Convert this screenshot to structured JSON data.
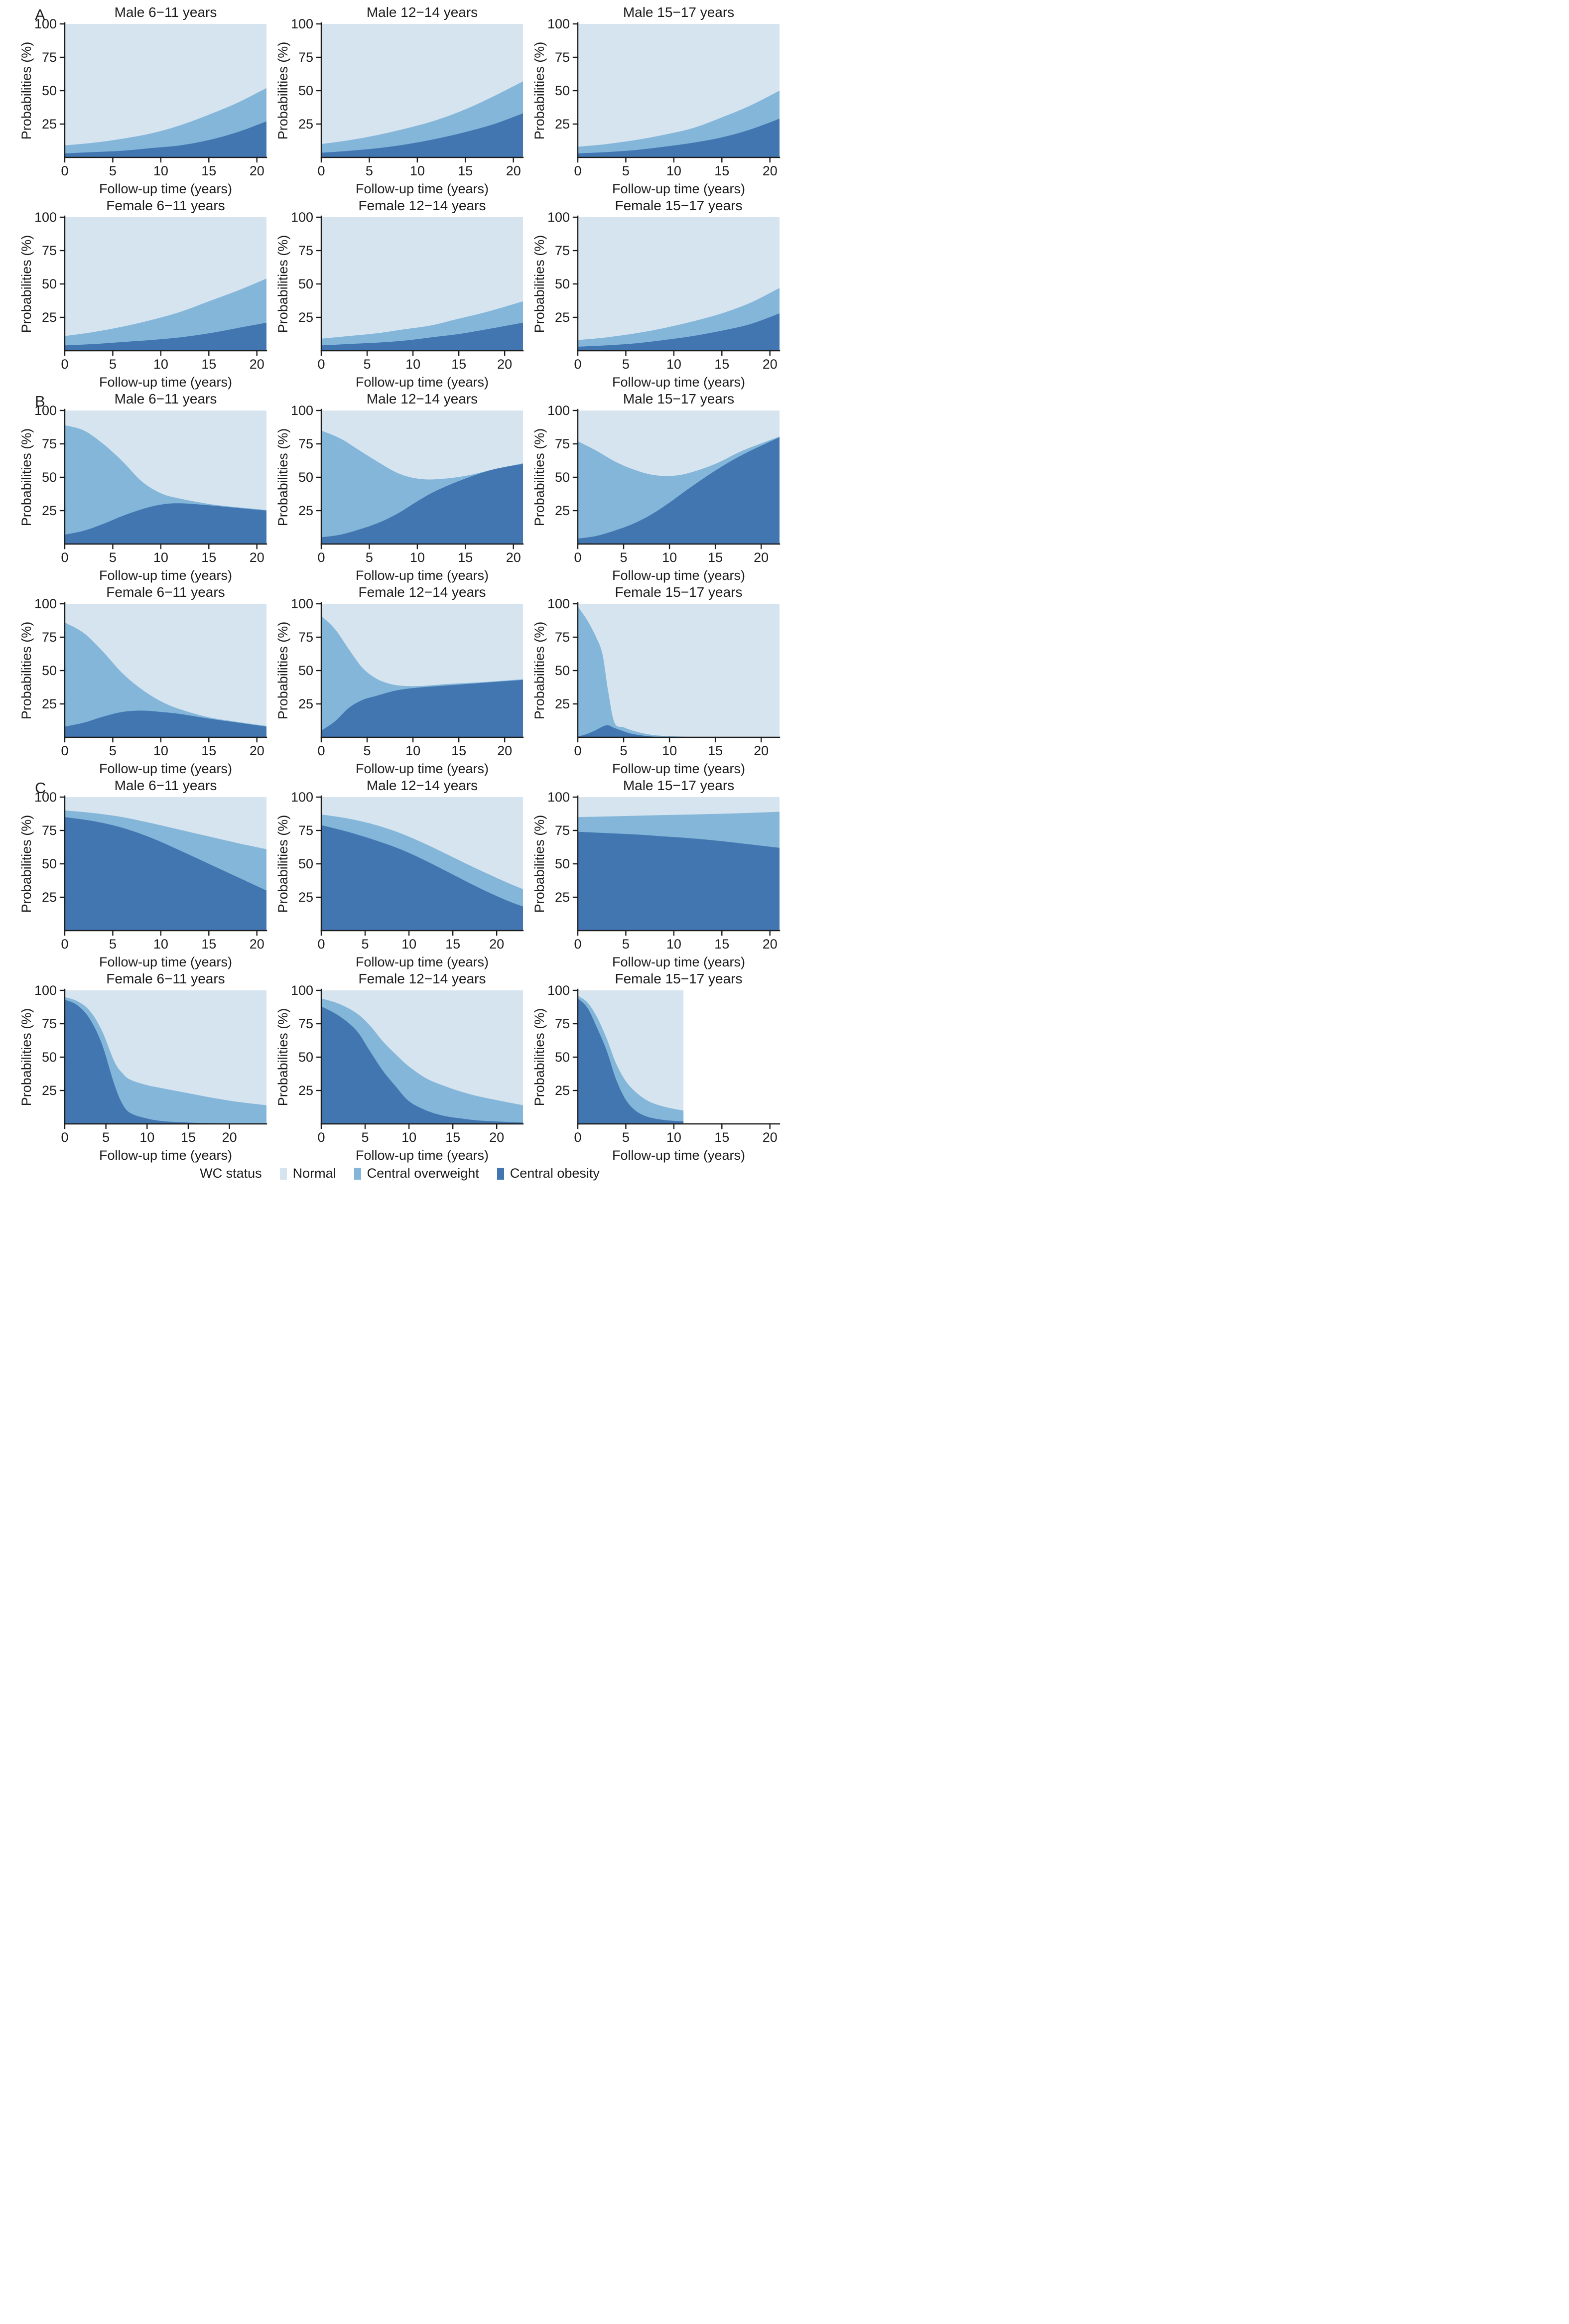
{
  "figure": {
    "panels": [
      {
        "label": "A"
      },
      {
        "label": "B"
      },
      {
        "label": "C"
      }
    ],
    "axis": {
      "ylabel": "Probabilities (%)",
      "xlabel": "Follow-up time (years)",
      "y_ticks": [
        25,
        50,
        75,
        100
      ],
      "ylim": [
        0,
        100
      ]
    },
    "legend": {
      "title": "WC status",
      "items": [
        {
          "label": "Normal",
          "color": "#d6e4f0"
        },
        {
          "label": "Central overweight",
          "color": "#83b6d9"
        },
        {
          "label": "Central obesity",
          "color": "#4276b1"
        }
      ]
    },
    "colors": {
      "axis": "#1c1c1c",
      "text": "#1c1c1c"
    }
  },
  "chart_data": {
    "type": "area",
    "notes": "Stacked area charts. Values are cumulative stacked boundaries in percent read from the figure: central_obesity_cum is the top of the dark-blue band, central_overweight_cum is the top of the mid-blue band; the light-blue Normal band fills the remainder up to 100 from x=0 to data_xmax.",
    "ylabel": "Probabilities (%)",
    "xlabel": "Follow-up time (years)",
    "y_ticks": [
      25,
      50,
      75,
      100
    ],
    "ylim": [
      0,
      100
    ],
    "charts": [
      {
        "panel": "A",
        "title": "Male 6−11 years",
        "x_ticks": [
          0,
          5,
          10,
          15,
          20
        ],
        "xlim": [
          0,
          21
        ],
        "data_xmax": 21,
        "x": [
          0,
          3,
          6,
          9,
          12,
          15,
          18,
          21
        ],
        "central_obesity_cum": [
          3,
          4,
          5,
          7,
          9,
          13,
          19,
          27
        ],
        "central_overweight_cum": [
          9,
          11,
          14,
          18,
          24,
          32,
          41,
          52
        ]
      },
      {
        "panel": "A",
        "title": "Male 12−14 years",
        "x_ticks": [
          0,
          5,
          10,
          15,
          20
        ],
        "xlim": [
          0,
          21
        ],
        "data_xmax": 21,
        "x": [
          0,
          3,
          6,
          9,
          12,
          15,
          18,
          21
        ],
        "central_obesity_cum": [
          3.5,
          5,
          7,
          10,
          14,
          19,
          25,
          33
        ],
        "central_overweight_cum": [
          10,
          13,
          17,
          22,
          28,
          36,
          46,
          57
        ]
      },
      {
        "panel": "A",
        "title": "Male 15−17 years",
        "x_ticks": [
          0,
          5,
          10,
          15,
          20
        ],
        "xlim": [
          0,
          21
        ],
        "data_xmax": 21,
        "x": [
          0,
          3,
          6,
          9,
          12,
          15,
          18,
          21
        ],
        "central_obesity_cum": [
          3,
          4,
          5.5,
          8,
          11,
          15,
          21,
          29
        ],
        "central_overweight_cum": [
          8,
          10,
          13,
          17,
          22,
          30,
          39,
          50
        ]
      },
      {
        "panel": "A",
        "title": "Female 6−11 years",
        "x_ticks": [
          0,
          5,
          10,
          15,
          20
        ],
        "xlim": [
          0,
          21
        ],
        "data_xmax": 21,
        "x": [
          0,
          3,
          6,
          9,
          12,
          15,
          18,
          21
        ],
        "central_obesity_cum": [
          4,
          5,
          6.5,
          8,
          10,
          13,
          17,
          21
        ],
        "central_overweight_cum": [
          11,
          14,
          18,
          23,
          29,
          37,
          45,
          54
        ]
      },
      {
        "panel": "A",
        "title": "Female 12−14 years",
        "x_ticks": [
          0,
          5,
          10,
          15,
          20
        ],
        "xlim": [
          0,
          22
        ],
        "data_xmax": 22,
        "x": [
          0,
          3,
          6,
          9,
          12,
          15,
          18,
          22
        ],
        "central_obesity_cum": [
          4,
          5,
          6,
          7.5,
          10,
          12.5,
          16,
          21
        ],
        "central_overweight_cum": [
          9,
          11,
          13,
          16,
          19,
          24,
          29,
          37
        ]
      },
      {
        "panel": "A",
        "title": "Female 15−17 years",
        "x_ticks": [
          0,
          5,
          10,
          15,
          20
        ],
        "xlim": [
          0,
          21
        ],
        "data_xmax": 21,
        "x": [
          0,
          3,
          6,
          9,
          12,
          15,
          18,
          21
        ],
        "central_obesity_cum": [
          3,
          4,
          5.5,
          8,
          11,
          15,
          20,
          28
        ],
        "central_overweight_cum": [
          8,
          10,
          13,
          17,
          22,
          28,
          36,
          47
        ]
      },
      {
        "panel": "B",
        "title": "Male 6−11 years",
        "x_ticks": [
          0,
          5,
          10,
          15,
          20
        ],
        "xlim": [
          0,
          21
        ],
        "data_xmax": 21,
        "x": [
          0,
          2,
          4,
          6,
          8,
          10,
          12,
          15,
          18,
          21
        ],
        "central_obesity_cum": [
          7,
          10,
          15,
          21,
          26,
          29.5,
          30.5,
          29,
          27,
          25
        ],
        "central_overweight_cum": [
          89,
          85,
          75,
          62,
          47,
          38,
          34,
          30,
          27.5,
          25.5
        ]
      },
      {
        "panel": "B",
        "title": "Male 12−14 years",
        "x_ticks": [
          0,
          5,
          10,
          15,
          20
        ],
        "xlim": [
          0,
          21
        ],
        "data_xmax": 21,
        "x": [
          0,
          2,
          4,
          6,
          8,
          10,
          12,
          15,
          18,
          21
        ],
        "central_obesity_cum": [
          5,
          7,
          11,
          16,
          23,
          32,
          40,
          49,
          56,
          60
        ],
        "central_overweight_cum": [
          85,
          79,
          70,
          61,
          53,
          49,
          48.5,
          51,
          56,
          60.5
        ]
      },
      {
        "panel": "B",
        "title": "Male 15−17 years",
        "x_ticks": [
          0,
          5,
          10,
          15,
          20
        ],
        "xlim": [
          0,
          22
        ],
        "data_xmax": 22,
        "x": [
          0,
          2,
          4,
          6,
          8,
          10,
          12,
          15,
          18,
          22
        ],
        "central_obesity_cum": [
          4,
          6,
          10,
          15,
          22,
          31,
          41,
          55,
          67,
          80
        ],
        "central_overweight_cum": [
          77,
          70,
          62,
          56,
          52,
          51,
          53,
          60,
          70,
          80.5
        ]
      },
      {
        "panel": "B",
        "title": "Female 6−11 years",
        "x_ticks": [
          0,
          5,
          10,
          15,
          20
        ],
        "xlim": [
          0,
          21
        ],
        "data_xmax": 21,
        "x": [
          0,
          2,
          4,
          6,
          8,
          10,
          12,
          15,
          18,
          21
        ],
        "central_obesity_cum": [
          8,
          11,
          15.5,
          19,
          20,
          19,
          17.5,
          14,
          11,
          8
        ],
        "central_overweight_cum": [
          86,
          78,
          64,
          48,
          36,
          27,
          21,
          15,
          11.5,
          8.5
        ]
      },
      {
        "panel": "B",
        "title": "Female 12−14 years",
        "x_ticks": [
          0,
          5,
          10,
          15,
          20
        ],
        "xlim": [
          0,
          22
        ],
        "data_xmax": 22,
        "x": [
          0,
          1.5,
          3,
          4.5,
          6,
          7.5,
          9,
          11,
          14,
          18,
          22
        ],
        "central_obesity_cum": [
          5,
          12,
          22,
          28,
          31,
          34,
          36,
          37.5,
          39,
          41,
          43
        ],
        "central_overweight_cum": [
          91,
          81,
          66,
          52,
          44,
          40,
          38.5,
          38.5,
          40,
          41.5,
          43.5
        ]
      },
      {
        "panel": "B",
        "title": "Female 15−17 years",
        "x_ticks": [
          0,
          5,
          10,
          15,
          20
        ],
        "xlim": [
          0,
          22
        ],
        "data_xmax": 22,
        "x": [
          0,
          1,
          2,
          2.7,
          3.3,
          4,
          5,
          6,
          7.5,
          9,
          12,
          16,
          22
        ],
        "central_obesity_cum": [
          0.5,
          2.5,
          5.5,
          8,
          9,
          7,
          4.5,
          2.5,
          1,
          0.3,
          0.1,
          0,
          0
        ],
        "central_overweight_cum": [
          98,
          88,
          75,
          62,
          35,
          11,
          7.5,
          5,
          2.5,
          1.2,
          0.4,
          0.2,
          0.2
        ]
      },
      {
        "panel": "C",
        "title": "Male 6−11 years",
        "x_ticks": [
          0,
          5,
          10,
          15,
          20
        ],
        "xlim": [
          0,
          21
        ],
        "data_xmax": 21,
        "x": [
          0,
          3,
          6,
          9,
          12,
          15,
          18,
          21
        ],
        "central_obesity_cum": [
          85,
          82,
          77,
          69.5,
          60,
          50,
          40,
          30
        ],
        "central_overweight_cum": [
          90,
          88,
          85,
          80.5,
          75.5,
          70.5,
          65.5,
          61
        ]
      },
      {
        "panel": "C",
        "title": "Male 12−14 years",
        "x_ticks": [
          0,
          5,
          10,
          15,
          20
        ],
        "xlim": [
          0,
          23
        ],
        "data_xmax": 23,
        "x": [
          0,
          3,
          6,
          9,
          12,
          15,
          18,
          21,
          23
        ],
        "central_obesity_cum": [
          79,
          74,
          68,
          61,
          52,
          42,
          32,
          23,
          18
        ],
        "central_overweight_cum": [
          87,
          84,
          79.5,
          73,
          64.5,
          55,
          45.5,
          36.5,
          31
        ]
      },
      {
        "panel": "C",
        "title": "Male 15−17 years",
        "x_ticks": [
          0,
          5,
          10,
          15,
          20
        ],
        "xlim": [
          0,
          21
        ],
        "data_xmax": 21,
        "x": [
          0,
          3,
          6,
          9,
          12,
          15,
          18,
          21
        ],
        "central_obesity_cum": [
          74,
          73,
          72,
          70.5,
          69,
          67,
          64.5,
          62
        ],
        "central_overweight_cum": [
          85,
          85.5,
          86,
          86.5,
          87,
          87.5,
          88.2,
          89
        ]
      },
      {
        "panel": "C",
        "title": "Female 6−11 years",
        "x_ticks": [
          0,
          5,
          10,
          15,
          20
        ],
        "xlim": [
          0,
          24.5
        ],
        "data_xmax": 24.5,
        "x": [
          0,
          1.5,
          3,
          4.5,
          6,
          7,
          8,
          10,
          12,
          15,
          18,
          21,
          24.5
        ],
        "central_obesity_cum": [
          93,
          89,
          79,
          60,
          30,
          15,
          8,
          4,
          2,
          1,
          0.5,
          0.3,
          0.2
        ],
        "central_overweight_cum": [
          95,
          92,
          85,
          70,
          47,
          38,
          33,
          29,
          26.5,
          23,
          19.5,
          16.5,
          14
        ]
      },
      {
        "panel": "C",
        "title": "Female 12−14 years",
        "x_ticks": [
          0,
          5,
          10,
          15,
          20
        ],
        "xlim": [
          0,
          23
        ],
        "data_xmax": 23,
        "x": [
          0,
          2,
          4,
          5.5,
          7,
          8.5,
          10,
          12,
          14,
          16,
          18,
          21,
          23
        ],
        "central_obesity_cum": [
          88,
          81,
          70,
          55,
          40,
          28,
          17,
          10,
          6,
          4,
          2.5,
          1.5,
          1
        ],
        "central_overweight_cum": [
          94,
          90,
          83,
          74,
          62,
          52,
          43,
          34,
          28.5,
          24,
          20.5,
          16.5,
          14
        ]
      },
      {
        "panel": "C",
        "title": "Female 15−17 years",
        "x_ticks": [
          0,
          5,
          10,
          15,
          20
        ],
        "xlim": [
          0,
          21
        ],
        "data_xmax": 11,
        "x": [
          0,
          1,
          2,
          3,
          4,
          5,
          6,
          7,
          8,
          9.5,
          11
        ],
        "central_obesity_cum": [
          94,
          87,
          72,
          55,
          33,
          18,
          10,
          6,
          4,
          2.5,
          2
        ],
        "central_overweight_cum": [
          96,
          91,
          80,
          64,
          45,
          32,
          24,
          18.5,
          15,
          12,
          10
        ]
      }
    ]
  }
}
